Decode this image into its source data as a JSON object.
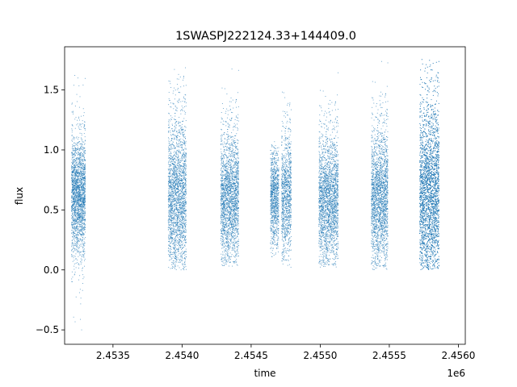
{
  "chart_data": {
    "type": "scatter",
    "title": "1SWASPJ222124.33+144409.0",
    "xlabel": "time",
    "ylabel": "flux",
    "x_offset_label": "1e6",
    "xlim": [
      2453150,
      2456050
    ],
    "ylim": [
      -0.62,
      1.86
    ],
    "x_ticks": [
      2453500,
      2454000,
      2454500,
      2455000,
      2455500,
      2456000
    ],
    "x_tick_labels": [
      "2.4535",
      "2.4540",
      "2.4545",
      "2.4550",
      "2.4555",
      "2.4560"
    ],
    "y_ticks": [
      -0.5,
      0.0,
      0.5,
      1.0,
      1.5
    ],
    "y_tick_labels": [
      "−0.5",
      "0.0",
      "0.5",
      "1.0",
      "1.5"
    ],
    "grid": false,
    "legend": "none",
    "point_color": "#1f77b4",
    "clusters": [
      {
        "x_start": 2453200,
        "x_end": 2453300,
        "y_center": 0.62,
        "y_core": [
          0.25,
          1.0
        ],
        "y_extent": [
          -0.5,
          1.65
        ],
        "points": 2200
      },
      {
        "x_start": 2453900,
        "x_end": 2454030,
        "y_center": 0.6,
        "y_core": [
          0.1,
          1.15
        ],
        "y_extent": [
          0.0,
          1.72
        ],
        "points": 2400
      },
      {
        "x_start": 2454280,
        "x_end": 2454410,
        "y_center": 0.6,
        "y_core": [
          0.2,
          1.05
        ],
        "y_extent": [
          0.03,
          1.7
        ],
        "points": 2300
      },
      {
        "x_start": 2454640,
        "x_end": 2454700,
        "y_center": 0.62,
        "y_core": [
          0.3,
          0.95
        ],
        "y_extent": [
          0.1,
          1.07
        ],
        "points": 1000
      },
      {
        "x_start": 2454720,
        "x_end": 2454790,
        "y_center": 0.62,
        "y_core": [
          0.25,
          1.05
        ],
        "y_extent": [
          0.0,
          1.6
        ],
        "points": 1100
      },
      {
        "x_start": 2454990,
        "x_end": 2455130,
        "y_center": 0.58,
        "y_core": [
          0.2,
          1.05
        ],
        "y_extent": [
          0.02,
          1.65
        ],
        "points": 2400
      },
      {
        "x_start": 2455370,
        "x_end": 2455490,
        "y_center": 0.6,
        "y_core": [
          0.2,
          1.1
        ],
        "y_extent": [
          0.0,
          1.75
        ],
        "points": 2200
      },
      {
        "x_start": 2455720,
        "x_end": 2455860,
        "y_center": 0.62,
        "y_core": [
          0.05,
          1.3
        ],
        "y_extent": [
          0.0,
          1.76
        ],
        "points": 5000
      }
    ]
  }
}
